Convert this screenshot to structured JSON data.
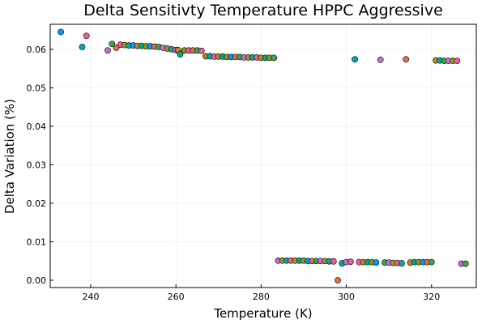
{
  "chart_data": {
    "type": "scatter",
    "title": "Delta Sensitivty Temperature HPPC Aggressive",
    "xlabel": "Temperature (K)",
    "ylabel": "Delta Variation (%)",
    "xlim": [
      230.5,
      330.5
    ],
    "ylim": [
      -0.0019,
      0.0665
    ],
    "xticks": [
      240,
      260,
      280,
      300,
      320
    ],
    "yticks": [
      0.0,
      0.01,
      0.02,
      0.03,
      0.04,
      0.05,
      0.06
    ],
    "xtick_labels": [
      "240",
      "260",
      "280",
      "300",
      "320"
    ],
    "ytick_labels": [
      "0.00",
      "0.01",
      "0.02",
      "0.03",
      "0.04",
      "0.05",
      "0.06"
    ],
    "grid": true,
    "legend": "none",
    "palette": [
      "#009AFA",
      "#E36F47",
      "#3EA44E",
      "#C371D2",
      "#AC8E18",
      "#00AAAE",
      "#ED5E93",
      "#C68225",
      "#00A98D",
      "#8E971E"
    ],
    "points": [
      {
        "x": 233,
        "y": 0.0645,
        "c": "#009AFA"
      },
      {
        "x": 238,
        "y": 0.0606,
        "c": "#00AAAE"
      },
      {
        "x": 239,
        "y": 0.0635,
        "c": "#ED5E93"
      },
      {
        "x": 244,
        "y": 0.0597,
        "c": "#C371D2"
      },
      {
        "x": 245,
        "y": 0.0614,
        "c": "#3EA44E"
      },
      {
        "x": 246,
        "y": 0.0604,
        "c": "#E36F47"
      },
      {
        "x": 247,
        "y": 0.0612,
        "c": "#ED5E93"
      },
      {
        "x": 248,
        "y": 0.0611,
        "c": "#AC8E18"
      },
      {
        "x": 249,
        "y": 0.061,
        "c": "#00AAAE"
      },
      {
        "x": 250,
        "y": 0.061,
        "c": "#009AFA"
      },
      {
        "x": 251,
        "y": 0.0609,
        "c": "#C68225"
      },
      {
        "x": 252,
        "y": 0.0609,
        "c": "#00A98D"
      },
      {
        "x": 253,
        "y": 0.0608,
        "c": "#8E971E"
      },
      {
        "x": 254,
        "y": 0.0608,
        "c": "#009AFA"
      },
      {
        "x": 255,
        "y": 0.0607,
        "c": "#E36F47"
      },
      {
        "x": 256,
        "y": 0.0606,
        "c": "#3EA44E"
      },
      {
        "x": 257,
        "y": 0.0604,
        "c": "#C371D2"
      },
      {
        "x": 258,
        "y": 0.0602,
        "c": "#AC8E18"
      },
      {
        "x": 259,
        "y": 0.06,
        "c": "#00AAAE"
      },
      {
        "x": 260,
        "y": 0.0598,
        "c": "#ED5E93"
      },
      {
        "x": 260.5,
        "y": 0.0598,
        "c": "#C68225"
      },
      {
        "x": 261,
        "y": 0.0587,
        "c": "#00A98D"
      },
      {
        "x": 262,
        "y": 0.0597,
        "c": "#8E971E"
      },
      {
        "x": 263,
        "y": 0.0597,
        "c": "#ED5E93"
      },
      {
        "x": 264,
        "y": 0.0597,
        "c": "#E36F47"
      },
      {
        "x": 265,
        "y": 0.0597,
        "c": "#3EA44E"
      },
      {
        "x": 266,
        "y": 0.0596,
        "c": "#ED5E93"
      },
      {
        "x": 267,
        "y": 0.0582,
        "c": "#AC8E18"
      },
      {
        "x": 268,
        "y": 0.0582,
        "c": "#00AAAE"
      },
      {
        "x": 269,
        "y": 0.0581,
        "c": "#ED5E93"
      },
      {
        "x": 270,
        "y": 0.0581,
        "c": "#C68225"
      },
      {
        "x": 271,
        "y": 0.0581,
        "c": "#00A98D"
      },
      {
        "x": 272,
        "y": 0.058,
        "c": "#8E971E"
      },
      {
        "x": 273,
        "y": 0.058,
        "c": "#009AFA"
      },
      {
        "x": 274,
        "y": 0.058,
        "c": "#E36F47"
      },
      {
        "x": 275,
        "y": 0.058,
        "c": "#3EA44E"
      },
      {
        "x": 276,
        "y": 0.0579,
        "c": "#C371D2"
      },
      {
        "x": 277,
        "y": 0.0579,
        "c": "#AC8E18"
      },
      {
        "x": 278,
        "y": 0.0579,
        "c": "#00AAAE"
      },
      {
        "x": 279,
        "y": 0.0579,
        "c": "#ED5E93"
      },
      {
        "x": 280,
        "y": 0.0578,
        "c": "#C68225"
      },
      {
        "x": 281,
        "y": 0.0578,
        "c": "#00A98D"
      },
      {
        "x": 282,
        "y": 0.0578,
        "c": "#8E971E"
      },
      {
        "x": 283,
        "y": 0.0578,
        "c": "#3EA44E"
      },
      {
        "x": 284,
        "y": 0.0051,
        "c": "#C371D2"
      },
      {
        "x": 285,
        "y": 0.0051,
        "c": "#AC8E18"
      },
      {
        "x": 286,
        "y": 0.0051,
        "c": "#00AAAE"
      },
      {
        "x": 287,
        "y": 0.0051,
        "c": "#ED5E93"
      },
      {
        "x": 288,
        "y": 0.0051,
        "c": "#C68225"
      },
      {
        "x": 289,
        "y": 0.0051,
        "c": "#00A98D"
      },
      {
        "x": 290,
        "y": 0.0051,
        "c": "#8E971E"
      },
      {
        "x": 291,
        "y": 0.005,
        "c": "#009AFA"
      },
      {
        "x": 292,
        "y": 0.005,
        "c": "#E36F47"
      },
      {
        "x": 293,
        "y": 0.005,
        "c": "#3EA44E"
      },
      {
        "x": 294,
        "y": 0.005,
        "c": "#C371D2"
      },
      {
        "x": 295,
        "y": 0.005,
        "c": "#AC8E18"
      },
      {
        "x": 296,
        "y": 0.0049,
        "c": "#00AAAE"
      },
      {
        "x": 297,
        "y": 0.0049,
        "c": "#ED5E93"
      },
      {
        "x": 298,
        "y": 0.0,
        "c": "#E36F47"
      },
      {
        "x": 299,
        "y": 0.0044,
        "c": "#00A98D"
      },
      {
        "x": 300,
        "y": 0.0047,
        "c": "#C371D2"
      },
      {
        "x": 301,
        "y": 0.0048,
        "c": "#ED5E93"
      },
      {
        "x": 302,
        "y": 0.0574,
        "c": "#00AAAE"
      },
      {
        "x": 303,
        "y": 0.0047,
        "c": "#ED5E93"
      },
      {
        "x": 304,
        "y": 0.0047,
        "c": "#C68225"
      },
      {
        "x": 305,
        "y": 0.0047,
        "c": "#00A98D"
      },
      {
        "x": 306,
        "y": 0.0047,
        "c": "#8E971E"
      },
      {
        "x": 307,
        "y": 0.0046,
        "c": "#009AFA"
      },
      {
        "x": 308,
        "y": 0.0573,
        "c": "#C371D2"
      },
      {
        "x": 309,
        "y": 0.0046,
        "c": "#3EA44E"
      },
      {
        "x": 310,
        "y": 0.0046,
        "c": "#C371D2"
      },
      {
        "x": 311,
        "y": 0.0045,
        "c": "#AC8E18"
      },
      {
        "x": 312,
        "y": 0.0045,
        "c": "#ED5E93"
      },
      {
        "x": 313,
        "y": 0.0044,
        "c": "#00AAAE"
      },
      {
        "x": 314,
        "y": 0.0574,
        "c": "#E36F47"
      },
      {
        "x": 315,
        "y": 0.0046,
        "c": "#C68225"
      },
      {
        "x": 316,
        "y": 0.0047,
        "c": "#00A98D"
      },
      {
        "x": 317,
        "y": 0.0047,
        "c": "#8E971E"
      },
      {
        "x": 318,
        "y": 0.0047,
        "c": "#009AFA"
      },
      {
        "x": 319,
        "y": 0.0047,
        "c": "#E36F47"
      },
      {
        "x": 320,
        "y": 0.0047,
        "c": "#3EA44E"
      },
      {
        "x": 321,
        "y": 0.0571,
        "c": "#AC8E18"
      },
      {
        "x": 322,
        "y": 0.0571,
        "c": "#00AAAE"
      },
      {
        "x": 323,
        "y": 0.057,
        "c": "#3EA44E"
      },
      {
        "x": 324,
        "y": 0.057,
        "c": "#C371D2"
      },
      {
        "x": 325,
        "y": 0.057,
        "c": "#8E971E"
      },
      {
        "x": 326,
        "y": 0.057,
        "c": "#ED5E93"
      },
      {
        "x": 327,
        "y": 0.0043,
        "c": "#C371D2"
      },
      {
        "x": 328,
        "y": 0.0043,
        "c": "#3EA44E"
      }
    ]
  }
}
